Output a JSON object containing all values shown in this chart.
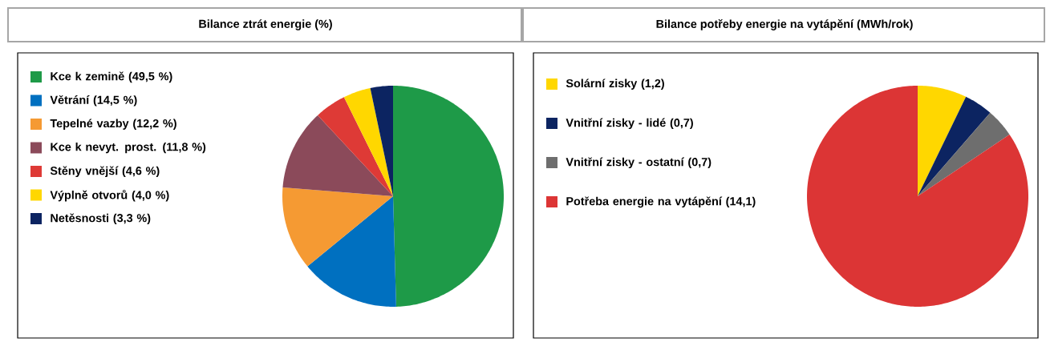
{
  "chart_data": [
    {
      "type": "pie",
      "title": "Bilance ztrát energie (%)",
      "legend": "left",
      "categories": [
        "Kce k zemině (49,5 %)",
        "Větrání (14,5 %)",
        "Tepelné vazby (12,2 %)",
        "Kce k nevyt. prost. (11,8 %)",
        "Stěny vnější (4,6 %)",
        "Výplně otvorů (4,0 %)",
        "Netěsnosti (3,3 %)"
      ],
      "values": [
        49.5,
        14.5,
        12.2,
        11.8,
        4.6,
        4.0,
        3.3
      ],
      "colors": [
        "#1e9a48",
        "#0070c0",
        "#f59a33",
        "#8b4a5a",
        "#de3a36",
        "#ffd700",
        "#0c2461"
      ]
    },
    {
      "type": "pie",
      "title": "Bilance potřeby energie na vytápění (MWh/rok)",
      "legend": "left",
      "categories": [
        "Solární zisky (1,2)",
        "Vnitřní zisky - lidé (0,7)",
        "Vnitřní zisky - ostatní (0,7)",
        "Potřeba energie na vytápění (14,1)"
      ],
      "values": [
        1.2,
        0.7,
        0.7,
        14.1
      ],
      "colors": [
        "#ffd700",
        "#0c2461",
        "#6e6e6e",
        "#dc3535"
      ]
    }
  ]
}
